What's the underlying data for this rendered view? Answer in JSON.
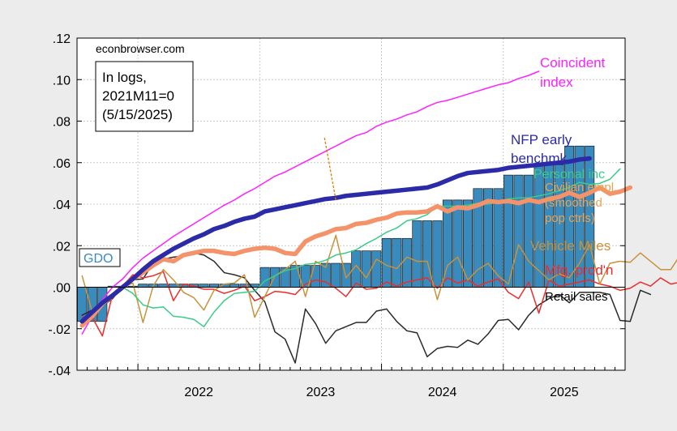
{
  "chart_data": {
    "type": "line",
    "watermark": "econbrowser.com",
    "note_lines": [
      "In logs,",
      "2021M11=0",
      "(5/15/2025)"
    ],
    "x_range": [
      "2021-07",
      "2025-12"
    ],
    "ylim": [
      -0.04,
      0.12
    ],
    "y_ticks": [
      {
        "v": 0.12,
        "label": ".12"
      },
      {
        "v": 0.1,
        "label": ".10"
      },
      {
        "v": 0.08,
        "label": ".08"
      },
      {
        "v": 0.06,
        "label": ".06"
      },
      {
        "v": 0.04,
        "label": ".04"
      },
      {
        "v": 0.02,
        "label": ".02"
      },
      {
        "v": 0.0,
        "label": ".00"
      },
      {
        "v": -0.02,
        "label": "-.02"
      },
      {
        "v": -0.04,
        "label": "-.04"
      }
    ],
    "x_ticks": [
      {
        "v": "2022-01",
        "label": "2022"
      },
      {
        "v": "2023-01",
        "label": "2023"
      },
      {
        "v": "2024-01",
        "label": "2024"
      },
      {
        "v": "2025-01",
        "label": "2025"
      }
    ],
    "gridlines": true,
    "reference_line_y": 0,
    "bars": {
      "name": "GDO",
      "color": "#3a8bbd",
      "x_start": "2021-07",
      "values": [
        -0.0165,
        -0.0165,
        -0.0165,
        0.0005,
        0.0005,
        0.0005,
        0.0015,
        0.0015,
        0.0015,
        0.0015,
        0.0015,
        0.0015,
        0.0015,
        0.0015,
        0.0015,
        0.0015,
        0.0015,
        0.0015,
        0.0095,
        0.0095,
        0.0095,
        0.0105,
        0.0105,
        0.0105,
        0.0115,
        0.0115,
        0.0115,
        0.0175,
        0.0175,
        0.0175,
        0.0235,
        0.0235,
        0.0235,
        0.032,
        0.032,
        0.032,
        0.042,
        0.042,
        0.042,
        0.0475,
        0.0475,
        0.0475,
        0.054,
        0.054,
        0.054,
        0.059,
        0.059,
        0.059,
        0.068,
        0.068,
        0.068
      ]
    },
    "series": [
      {
        "name": "Coincident index",
        "label_lines": [
          "Coincident",
          "index"
        ],
        "color": "#ff20ff",
        "width": 1.5,
        "x_start": "2021-07",
        "values": [
          -0.0225,
          -0.014,
          -0.006,
          0.0,
          0.004,
          0.0095,
          0.014,
          0.0175,
          0.021,
          0.0245,
          0.0275,
          0.0305,
          0.0335,
          0.0365,
          0.0395,
          0.042,
          0.045,
          0.0475,
          0.0505,
          0.0535,
          0.0555,
          0.058,
          0.0605,
          0.063,
          0.0655,
          0.068,
          0.0705,
          0.073,
          0.0745,
          0.0775,
          0.0795,
          0.081,
          0.083,
          0.0845,
          0.087,
          0.089,
          0.09,
          0.0915,
          0.093,
          0.0945,
          0.096,
          0.0975,
          0.0985,
          0.1005,
          0.102,
          0.104
        ]
      },
      {
        "name": "NFP early benchmk",
        "label_lines": [
          "NFP early",
          "benchmk"
        ],
        "color": "#2b2ba8",
        "width": 5.5,
        "x_start": "2021-07",
        "values": [
          -0.0165,
          -0.012,
          -0.0075,
          -0.004,
          0.0,
          0.004,
          0.0085,
          0.0125,
          0.0155,
          0.0185,
          0.021,
          0.0235,
          0.0255,
          0.028,
          0.0295,
          0.0315,
          0.033,
          0.034,
          0.0365,
          0.0375,
          0.0385,
          0.0395,
          0.0405,
          0.0415,
          0.0425,
          0.043,
          0.044,
          0.0445,
          0.045,
          0.0455,
          0.046,
          0.0465,
          0.047,
          0.0475,
          0.048,
          0.0495,
          0.0515,
          0.0535,
          0.055,
          0.0555,
          0.056,
          0.0565,
          0.0575,
          0.058,
          0.0585,
          0.059,
          0.0595,
          0.06,
          0.0605,
          0.0615,
          0.062
        ]
      },
      {
        "name": "Personal inc",
        "label_lines": [
          "Personal inc"
        ],
        "color": "#3acc88",
        "width": 1.5,
        "x_start": "2021-07",
        "values": [
          -0.018,
          -0.013,
          -0.008,
          -0.004,
          0.0,
          -0.003,
          -0.0085,
          -0.01,
          -0.0095,
          -0.014,
          -0.0145,
          -0.0155,
          -0.019,
          -0.012,
          -0.0065,
          -0.003,
          -0.0025,
          -0.002,
          0.003,
          0.0055,
          0.008,
          0.009,
          0.011,
          0.0115,
          0.013,
          0.0155,
          0.0165,
          0.018,
          0.021,
          0.0235,
          0.0265,
          0.0285,
          0.032,
          0.033,
          0.035,
          0.039,
          0.039,
          0.039,
          0.0395,
          0.0405,
          0.04,
          0.041,
          0.0425,
          0.043,
          0.043,
          0.044,
          0.045,
          0.0465,
          0.048,
          0.0505,
          0.0495,
          0.05,
          0.052,
          0.057
        ]
      },
      {
        "name": "Civilian empl. (smoothed pop ctrls)",
        "label_lines": [
          "Civilian empl.",
          "(smoothed",
          "pop ctrls)"
        ],
        "color": "#f4926a",
        "width": 5.5,
        "x_start": "2021-07",
        "values": [
          -0.0185,
          -0.014,
          -0.008,
          -0.004,
          0.0,
          0.004,
          0.007,
          0.0105,
          0.0135,
          0.0125,
          0.0155,
          0.0165,
          0.0175,
          0.0175,
          0.0165,
          0.016,
          0.0175,
          0.0185,
          0.019,
          0.0185,
          0.0165,
          0.016,
          0.022,
          0.0245,
          0.026,
          0.028,
          0.0285,
          0.0305,
          0.031,
          0.0325,
          0.0335,
          0.0355,
          0.036,
          0.036,
          0.0365,
          0.039,
          0.0365,
          0.0385,
          0.038,
          0.0395,
          0.0415,
          0.041,
          0.0415,
          0.0405,
          0.042,
          0.041,
          0.0425,
          0.0435,
          0.0455,
          0.0435,
          0.0455,
          0.048,
          0.045,
          0.046,
          0.048
        ]
      },
      {
        "name": "Vehicle Miles",
        "label_lines": [
          "Vehicle Miles"
        ],
        "color": "#c8923a",
        "width": 1.5,
        "x_start": "2021-07",
        "values": [
          0.0055,
          -0.012,
          -0.008,
          -0.0035,
          0.0,
          0.002,
          -0.017,
          0.0005,
          0.0085,
          0.0035,
          -0.0025,
          -0.005,
          -0.011,
          -0.0015,
          0.0015,
          0.002,
          0.006,
          -0.0145,
          -0.0045,
          0.0055,
          0.0085,
          0.0125,
          -0.0045,
          0.0125,
          0.0095,
          0.025,
          0.0045,
          0.0105,
          0.0045,
          0.0135,
          0.0105,
          0.009,
          0.0145,
          0.0125,
          0.0125,
          -0.006,
          0.0105,
          0.0145,
          0.0035,
          0.0085,
          0.0115,
          0.0055,
          0.0015,
          0.0205,
          0.0125,
          0.008,
          0.0035,
          0.0065,
          0.0045,
          0.0115,
          0.0205,
          0.0015,
          0.0115,
          0.0125,
          0.012,
          0.0165,
          0.0125,
          0.0085,
          0.0085,
          0.016,
          0.0045,
          0.0015,
          0.0065,
          0.0165,
          0.0105,
          0.0055,
          0.0245,
          0.027,
          0.0195,
          0.032
        ]
      },
      {
        "name": "Mfg. prod'n",
        "label_lines": [
          "Mfg. prod'n"
        ],
        "color": "#ee2b2b",
        "width": 1.5,
        "x_start": "2021-07",
        "values": [
          -0.0145,
          -0.0145,
          -0.0235,
          -0.0035,
          0.0005,
          0.006,
          0.0045,
          0.0055,
          0.0075,
          -0.0065,
          0.0015,
          0.0005,
          -0.001,
          -0.001,
          -0.003,
          -0.0015,
          0.0005,
          -0.0065,
          -0.0045,
          -0.002,
          -0.0025,
          -0.0035,
          0.0015,
          0.0035,
          0.0025,
          -0.0005,
          -0.0045,
          0.002,
          -0.001,
          -0.0005,
          0.0025,
          0.0005,
          0.0025,
          0.0035,
          0.0045,
          -0.0005,
          0.0045,
          0.002,
          0.0035,
          0.0005,
          0.0025,
          0.004,
          -0.0025,
          -0.0055,
          0.0025,
          -0.0125,
          0.0035,
          0.0005,
          0.0015,
          0.0025,
          0.0035,
          0.0015,
          0.0005,
          -0.0015,
          -0.0005,
          0.0025,
          0.0005,
          0.0045,
          0.0015,
          0.0025,
          -0.0005,
          0.0025,
          0.004,
          0.0005,
          0.0,
          -0.0005,
          0.009,
          0.0145,
          0.0105
        ]
      },
      {
        "name": "Retail sales",
        "label_lines": [
          "Retail sales"
        ],
        "color": "#2a2a2a",
        "width": 1.5,
        "x_start": "2021-07",
        "values": [
          -0.0135,
          -0.011,
          -0.009,
          -0.0055,
          0.0005,
          0.0035,
          0.004,
          0.0115,
          0.0135,
          0.0145,
          0.015,
          0.0165,
          0.0155,
          0.0125,
          0.007,
          0.006,
          0.0045,
          -0.0015,
          -0.007,
          -0.0215,
          -0.025,
          -0.0365,
          -0.0105,
          -0.0175,
          -0.027,
          -0.021,
          -0.019,
          -0.017,
          -0.017,
          -0.0115,
          -0.0105,
          -0.0165,
          -0.021,
          -0.022,
          -0.0335,
          -0.0295,
          -0.0285,
          -0.029,
          -0.0255,
          -0.0275,
          -0.0225,
          -0.016,
          -0.0155,
          -0.0205,
          -0.0135,
          -0.0085,
          -0.0055,
          -0.0035,
          -0.0075,
          -0.0025,
          -0.0025,
          -0.0025,
          -0.0035,
          -0.016,
          -0.0165,
          -0.0015,
          -0.0035
        ]
      }
    ],
    "vline": {
      "x": "2023-08",
      "y_from": 0.072,
      "y_to": 0.042,
      "color": "#e07b00"
    }
  }
}
